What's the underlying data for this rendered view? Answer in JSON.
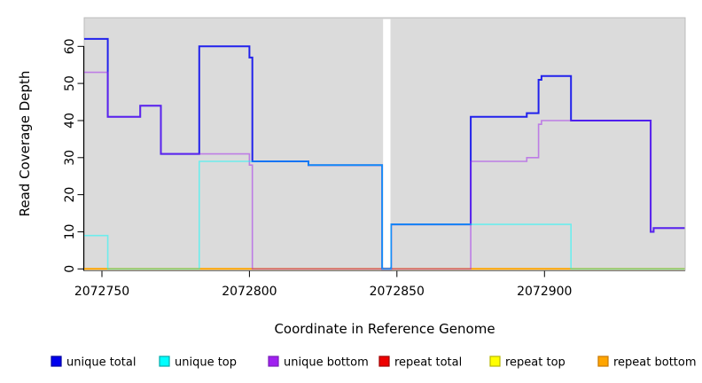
{
  "background": "#ffffff",
  "chart_data": {
    "type": "line",
    "subtype": "step-coverage",
    "xlabel": "Coordinate in Reference Genome",
    "ylabel": "Read Coverage Depth",
    "x_domain": [
      2072744,
      2072947.5
    ],
    "y_domain": [
      0,
      67.7
    ],
    "x_ticks": [
      2072750,
      2072800,
      2072850,
      2072900
    ],
    "y_ticks": [
      0,
      10,
      20,
      30,
      40,
      50,
      60
    ],
    "grid": false,
    "plot_bg": "#dbdbdb",
    "masked_region": [
      2072845.3,
      2072847.8
    ],
    "legend_position": "bottom",
    "draw_order": [
      "repeat total",
      "repeat top",
      "repeat bottom",
      "unique total",
      "unique bottom",
      "unique top"
    ],
    "series": [
      {
        "name": "unique total",
        "color": "#0000EE",
        "opacity": 0.85,
        "width": 2,
        "steps": [
          [
            2072744,
            62
          ],
          [
            2072752,
            41
          ],
          [
            2072763,
            44
          ],
          [
            2072770,
            31
          ],
          [
            2072783,
            60
          ],
          [
            2072800,
            57
          ],
          [
            2072801,
            29
          ],
          [
            2072820,
            28
          ],
          [
            2072845,
            0
          ],
          [
            2072848,
            12
          ],
          [
            2072875,
            41
          ],
          [
            2072894,
            42
          ],
          [
            2072898,
            51
          ],
          [
            2072899,
            52
          ],
          [
            2072909,
            40
          ],
          [
            2072936,
            10
          ],
          [
            2072937,
            11
          ]
        ]
      },
      {
        "name": "unique top",
        "color": "#00FFFF",
        "opacity": 0.5,
        "width": 1.6,
        "steps": [
          [
            2072744,
            9
          ],
          [
            2072752,
            0
          ],
          [
            2072783,
            29
          ],
          [
            2072820,
            28
          ],
          [
            2072845,
            0
          ],
          [
            2072848,
            12
          ],
          [
            2072909,
            0
          ]
        ]
      },
      {
        "name": "unique bottom",
        "color": "#A020F0",
        "opacity": 0.5,
        "width": 1.6,
        "steps": [
          [
            2072744,
            53
          ],
          [
            2072752,
            41
          ],
          [
            2072763,
            44
          ],
          [
            2072770,
            31
          ],
          [
            2072800,
            28
          ],
          [
            2072801,
            0
          ],
          [
            2072875,
            29
          ],
          [
            2072894,
            30
          ],
          [
            2072898,
            39
          ],
          [
            2072899,
            40
          ],
          [
            2072936,
            10
          ],
          [
            2072937,
            11
          ]
        ]
      },
      {
        "name": "repeat total",
        "color": "#DD0000",
        "opacity": 1,
        "width": 1.5,
        "steps": [
          [
            2072744,
            0
          ]
        ]
      },
      {
        "name": "repeat top",
        "color": "#FFFF00",
        "opacity": 1,
        "width": 1.5,
        "steps": [
          [
            2072744,
            0
          ]
        ]
      },
      {
        "name": "repeat bottom",
        "color": "#FFA500",
        "opacity": 1,
        "width": 2,
        "steps": [
          [
            2072744,
            0
          ]
        ]
      }
    ]
  },
  "legend": {
    "items": [
      {
        "label": "unique total",
        "color": "#0000EE",
        "border": "#0000A0"
      },
      {
        "label": "unique top",
        "color": "#00FFFF",
        "border": "#00AAAA"
      },
      {
        "label": "unique bottom",
        "color": "#A020F0",
        "border": "#7A1FB8"
      },
      {
        "label": "repeat total",
        "color": "#EE0000",
        "border": "#A00000"
      },
      {
        "label": "repeat top",
        "color": "#FFFF00",
        "border": "#B8B800"
      },
      {
        "label": "repeat bottom",
        "color": "#FFA500",
        "border": "#C87800"
      }
    ]
  }
}
